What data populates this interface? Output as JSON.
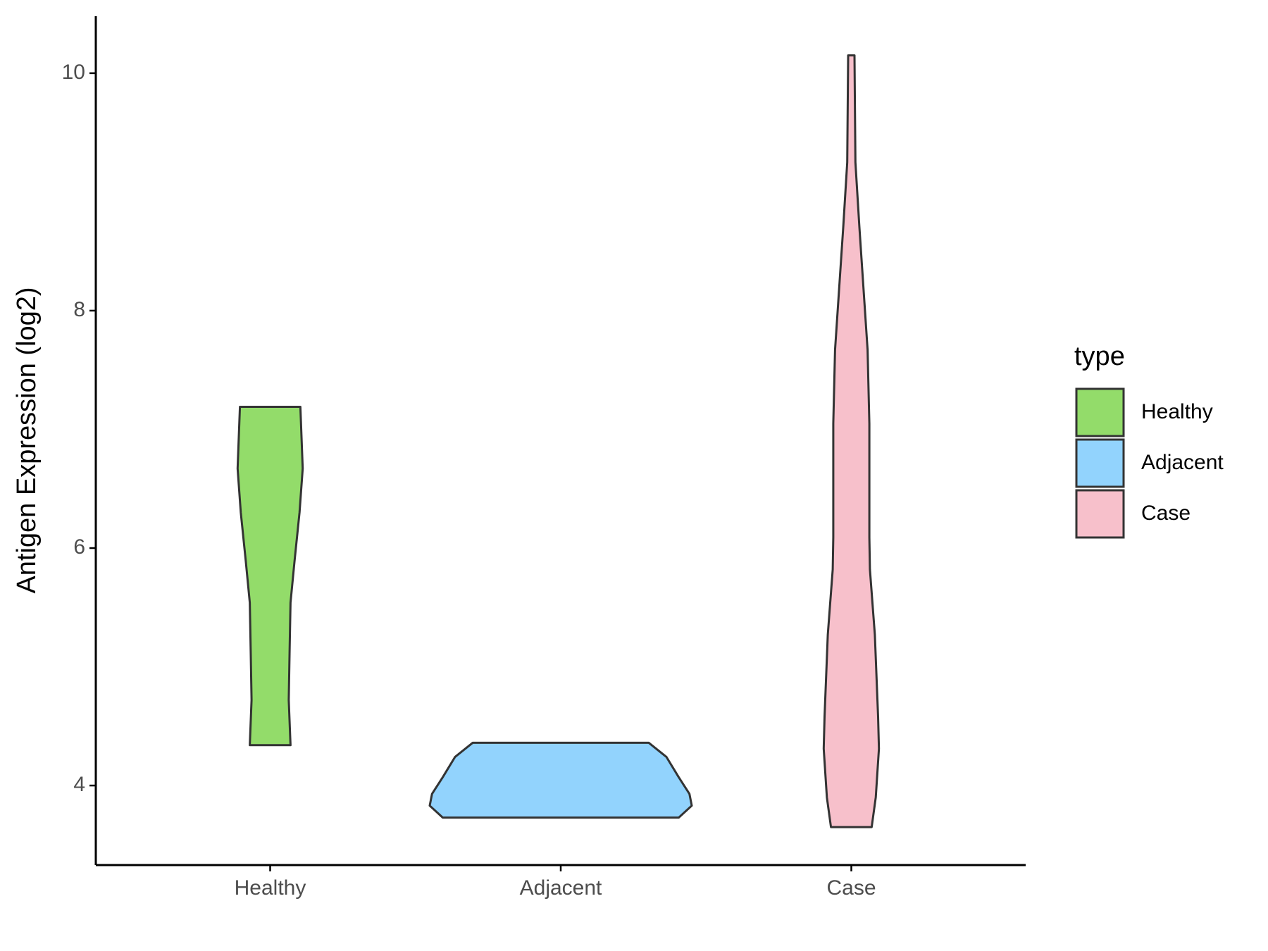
{
  "chart_data": {
    "type": "violin",
    "y_label": "Antigen Expression (log2)",
    "categories": [
      "Healthy",
      "Adjacent",
      "Case"
    ],
    "legend_title": "type",
    "ylim": [
      3.33,
      10.48
    ],
    "yticks": [
      4,
      6,
      8,
      10
    ],
    "series": [
      {
        "name": "Healthy",
        "color": "#93dc6a",
        "y": [
          7.19,
          6.67,
          6.3,
          5.89,
          5.54,
          5.13,
          4.72,
          4.34
        ],
        "width": [
          0.104,
          0.112,
          0.101,
          0.084,
          0.07,
          0.067,
          0.064,
          0.07
        ]
      },
      {
        "name": "Adjacent",
        "color": "#92d3fd",
        "y": [
          4.36,
          4.24,
          4.07,
          3.93,
          3.83,
          3.73
        ],
        "width": [
          0.303,
          0.364,
          0.406,
          0.443,
          0.451,
          0.406
        ]
      },
      {
        "name": "Case",
        "color": "#f7c0cb",
        "y": [
          10.15,
          9.25,
          8.7,
          7.67,
          7.05,
          6.09,
          5.82,
          5.27,
          4.58,
          4.31,
          3.9,
          3.65
        ],
        "width": [
          0.011,
          0.014,
          0.028,
          0.056,
          0.062,
          0.062,
          0.064,
          0.081,
          0.092,
          0.095,
          0.084,
          0.07
        ]
      }
    ]
  }
}
